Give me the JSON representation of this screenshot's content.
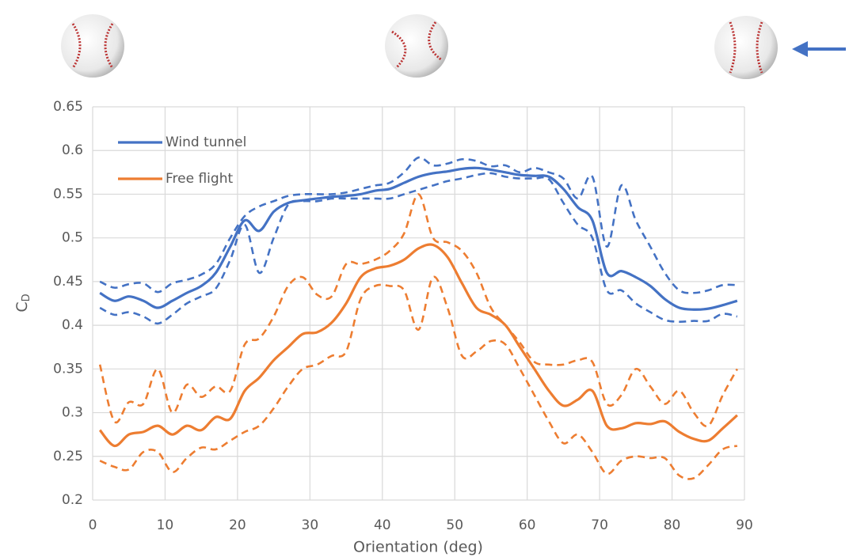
{
  "chart_data": {
    "type": "line",
    "xlabel": "Orientation (deg)",
    "ylabel": "C",
    "ylabel_subscript": "D",
    "x": [
      1,
      3,
      5,
      7,
      9,
      11,
      13,
      15,
      17,
      19,
      21,
      23,
      25,
      27,
      29,
      31,
      33,
      35,
      37,
      39,
      41,
      43,
      45,
      47,
      49,
      51,
      53,
      55,
      57,
      59,
      61,
      63,
      65,
      67,
      69,
      71,
      73,
      75,
      77,
      79,
      81,
      83,
      85,
      87,
      89
    ],
    "series": [
      {
        "name": "Wind tunnel",
        "color": "#4472c4",
        "dashed": false,
        "values": [
          0.437,
          0.428,
          0.433,
          0.428,
          0.42,
          0.428,
          0.437,
          0.445,
          0.46,
          0.49,
          0.52,
          0.508,
          0.53,
          0.54,
          0.543,
          0.545,
          0.547,
          0.548,
          0.55,
          0.554,
          0.556,
          0.563,
          0.57,
          0.574,
          0.576,
          0.579,
          0.58,
          0.578,
          0.575,
          0.572,
          0.571,
          0.57,
          0.556,
          0.535,
          0.52,
          0.46,
          0.462,
          0.455,
          0.445,
          0.43,
          0.42,
          0.418,
          0.419,
          0.423,
          0.428
        ]
      },
      {
        "color": "#4472c4",
        "dashed": true,
        "values": [
          0.45,
          0.443,
          0.447,
          0.448,
          0.438,
          0.448,
          0.452,
          0.458,
          0.47,
          0.5,
          0.525,
          0.536,
          0.542,
          0.548,
          0.55,
          0.55,
          0.55,
          0.552,
          0.556,
          0.56,
          0.563,
          0.575,
          0.592,
          0.583,
          0.585,
          0.59,
          0.588,
          0.582,
          0.583,
          0.575,
          0.58,
          0.575,
          0.568,
          0.545,
          0.57,
          0.49,
          0.56,
          0.52,
          0.49,
          0.46,
          0.44,
          0.437,
          0.44,
          0.446,
          0.446
        ]
      },
      {
        "color": "#4472c4",
        "dashed": true,
        "values": [
          0.42,
          0.412,
          0.415,
          0.41,
          0.402,
          0.412,
          0.425,
          0.433,
          0.442,
          0.475,
          0.515,
          0.46,
          0.5,
          0.538,
          0.542,
          0.542,
          0.545,
          0.545,
          0.545,
          0.545,
          0.545,
          0.55,
          0.555,
          0.56,
          0.565,
          0.568,
          0.572,
          0.574,
          0.57,
          0.568,
          0.568,
          0.567,
          0.54,
          0.515,
          0.5,
          0.44,
          0.44,
          0.425,
          0.415,
          0.406,
          0.404,
          0.405,
          0.405,
          0.413,
          0.41
        ]
      },
      {
        "name": "Free flight",
        "color": "#ed7d31",
        "dashed": false,
        "values": [
          0.28,
          0.262,
          0.275,
          0.278,
          0.285,
          0.275,
          0.285,
          0.28,
          0.295,
          0.293,
          0.325,
          0.34,
          0.36,
          0.375,
          0.39,
          0.392,
          0.403,
          0.425,
          0.455,
          0.465,
          0.468,
          0.475,
          0.488,
          0.492,
          0.478,
          0.448,
          0.42,
          0.412,
          0.4,
          0.375,
          0.35,
          0.325,
          0.308,
          0.315,
          0.325,
          0.285,
          0.282,
          0.288,
          0.287,
          0.29,
          0.278,
          0.27,
          0.268,
          0.282,
          0.297
        ]
      },
      {
        "color": "#ed7d31",
        "dashed": true,
        "values": [
          0.355,
          0.29,
          0.312,
          0.31,
          0.35,
          0.3,
          0.332,
          0.318,
          0.33,
          0.325,
          0.378,
          0.385,
          0.41,
          0.445,
          0.455,
          0.435,
          0.433,
          0.47,
          0.47,
          0.475,
          0.485,
          0.505,
          0.55,
          0.5,
          0.495,
          0.485,
          0.46,
          0.42,
          0.4,
          0.38,
          0.358,
          0.355,
          0.355,
          0.36,
          0.358,
          0.31,
          0.32,
          0.35,
          0.33,
          0.31,
          0.325,
          0.3,
          0.285,
          0.32,
          0.35
        ]
      },
      {
        "color": "#ed7d31",
        "dashed": true,
        "values": [
          0.245,
          0.238,
          0.235,
          0.255,
          0.255,
          0.232,
          0.248,
          0.26,
          0.258,
          0.268,
          0.278,
          0.285,
          0.305,
          0.33,
          0.35,
          0.355,
          0.365,
          0.37,
          0.43,
          0.445,
          0.445,
          0.44,
          0.395,
          0.455,
          0.42,
          0.365,
          0.37,
          0.382,
          0.378,
          0.35,
          0.32,
          0.29,
          0.265,
          0.275,
          0.255,
          0.23,
          0.245,
          0.25,
          0.248,
          0.248,
          0.228,
          0.225,
          0.24,
          0.258,
          0.262
        ]
      }
    ],
    "xlim": [
      0,
      90
    ],
    "xticks": [
      0,
      10,
      20,
      30,
      40,
      50,
      60,
      70,
      80,
      90
    ],
    "ylim": [
      0.2,
      0.65
    ],
    "yticks": [
      0.2,
      0.25,
      0.3,
      0.35,
      0.4,
      0.45,
      0.5,
      0.55,
      0.6,
      0.65
    ],
    "grid": true,
    "legend": "upper left"
  }
}
